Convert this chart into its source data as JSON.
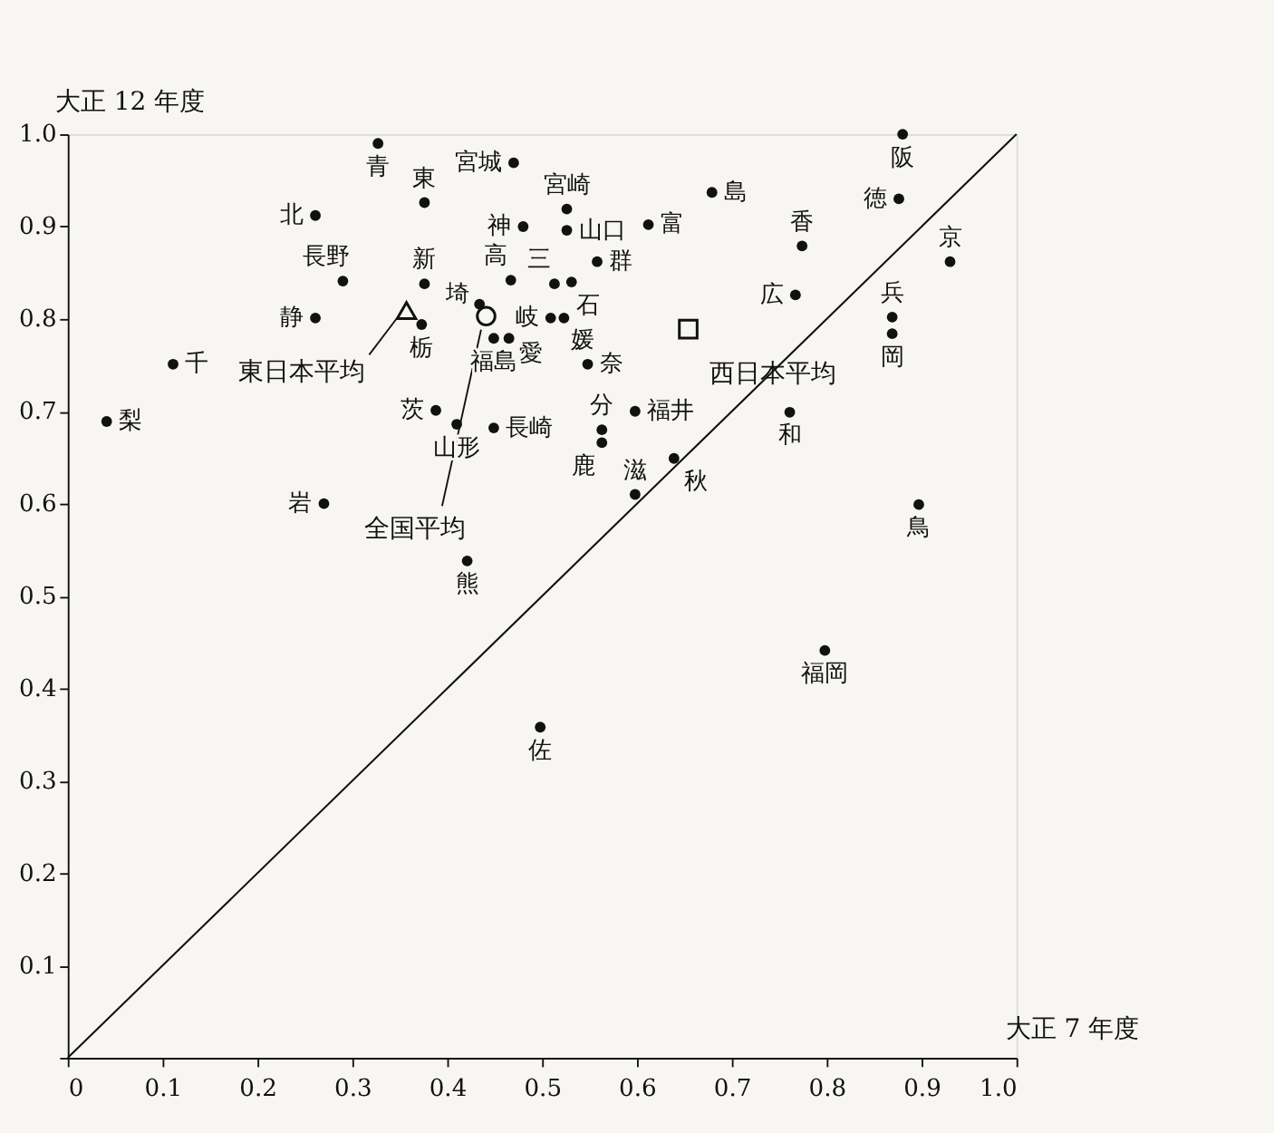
{
  "chart_data": {
    "type": "scatter",
    "xlabel": "大正 7 年度",
    "ylabel": "大正 12 年度",
    "xlim": [
      0,
      1
    ],
    "ylim": [
      0,
      1
    ],
    "xticks": [
      0,
      0.1,
      0.2,
      0.3,
      0.4,
      0.5,
      0.6,
      0.7,
      0.8,
      0.9,
      {
        "value": 1,
        "label": "1.0"
      }
    ],
    "yticks": [
      {
        "value": 0,
        "label": null
      },
      0.1,
      0.2,
      0.3,
      0.4,
      0.5,
      0.6,
      0.7,
      0.8,
      0.9,
      {
        "value": 1,
        "label": "1.0"
      }
    ],
    "series": [
      {
        "color": "#111111",
        "marker": "circle",
        "x": [
          0.327,
          0.47,
          0.376,
          0.261,
          0.48,
          0.29,
          0.376,
          0.467,
          0.261,
          0.373,
          0.434,
          0.449,
          0.465,
          0.111,
          0.041,
          0.388,
          0.41,
          0.449,
          0.27,
          0.421,
          0.526,
          0.526,
          0.612,
          0.679,
          0.558,
          0.513,
          0.531,
          0.509,
          0.523,
          0.548,
          0.563,
          0.563,
          0.598,
          0.639,
          0.598,
          0.774,
          0.767,
          0.761,
          0.88,
          0.876,
          0.869,
          0.869,
          0.93,
          0.897,
          0.798,
          0.498
        ],
        "values": [
          0.99,
          0.969,
          0.926,
          0.912,
          0.9,
          0.841,
          0.838,
          0.842,
          0.801,
          0.794,
          0.816,
          0.779,
          0.779,
          0.751,
          0.689,
          0.701,
          0.686,
          0.682,
          0.6,
          0.538,
          0.919,
          0.896,
          0.902,
          0.937,
          0.862,
          0.838,
          0.84,
          0.801,
          0.801,
          0.751,
          0.68,
          0.666,
          0.7,
          0.649,
          0.61,
          0.879,
          0.826,
          0.699,
          1.0,
          0.93,
          0.802,
          0.784,
          0.862,
          0.599,
          0.441,
          0.358
        ],
        "value_labels": [
          "青",
          "宮城",
          "東",
          "北",
          "神",
          "長野",
          "新",
          "高",
          "静",
          "栃",
          "埼",
          "福島",
          "愛",
          "千",
          "梨",
          "茨",
          "山形",
          "長崎",
          "岩",
          "熊",
          "宮崎",
          "山口",
          "富",
          "島",
          "群",
          "三",
          "石",
          "岐",
          "媛",
          "奈",
          "分",
          "鹿",
          "福井",
          "秋",
          "滋",
          "香",
          "広",
          "和",
          "阪",
          "徳",
          "兵",
          "岡",
          "京",
          "鳥",
          "福岡",
          "佐"
        ]
      },
      {
        "name": "東日本平均",
        "color": "#111111",
        "marker": "triangle",
        "x": [
          0.357
        ],
        "values": [
          0.809
        ]
      },
      {
        "name": "全国平均",
        "color": "#111111",
        "marker": "circle_open",
        "x": [
          0.441
        ],
        "values": [
          0.803
        ]
      },
      {
        "name": "西日本平均",
        "color": "#111111",
        "marker": "square",
        "x": [
          0.654
        ],
        "values": [
          0.789
        ]
      },
      {
        "type": "line",
        "color": "#111111",
        "x": [
          0,
          1
        ],
        "values": [
          0,
          1
        ]
      }
    ]
  }
}
